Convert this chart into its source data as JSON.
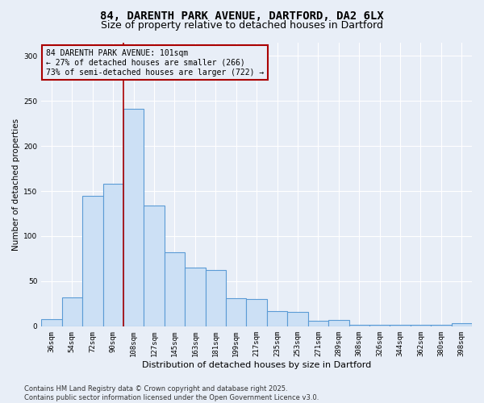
{
  "title_line1": "84, DARENTH PARK AVENUE, DARTFORD, DA2 6LX",
  "title_line2": "Size of property relative to detached houses in Dartford",
  "xlabel": "Distribution of detached houses by size in Dartford",
  "ylabel": "Number of detached properties",
  "categories": [
    "36sqm",
    "54sqm",
    "72sqm",
    "90sqm",
    "108sqm",
    "127sqm",
    "145sqm",
    "163sqm",
    "181sqm",
    "199sqm",
    "217sqm",
    "235sqm",
    "253sqm",
    "271sqm",
    "289sqm",
    "308sqm",
    "326sqm",
    "344sqm",
    "362sqm",
    "380sqm",
    "398sqm"
  ],
  "values": [
    8,
    32,
    145,
    158,
    241,
    134,
    82,
    65,
    62,
    31,
    30,
    17,
    16,
    6,
    7,
    2,
    2,
    2,
    2,
    2,
    3
  ],
  "bar_color": "#cce0f5",
  "bar_edge_color": "#5b9bd5",
  "vline_x_index": 3.5,
  "vline_color": "#aa0000",
  "annotation_text": "84 DARENTH PARK AVENUE: 101sqm\n← 27% of detached houses are smaller (266)\n73% of semi-detached houses are larger (722) →",
  "annotation_box_color": "#aa0000",
  "ylim": [
    0,
    315
  ],
  "yticks": [
    0,
    50,
    100,
    150,
    200,
    250,
    300
  ],
  "background_color": "#e8eef7",
  "grid_color": "#ffffff",
  "footer_text": "Contains HM Land Registry data © Crown copyright and database right 2025.\nContains public sector information licensed under the Open Government Licence v3.0.",
  "title_fontsize": 10,
  "subtitle_fontsize": 9,
  "annotation_fontsize": 7,
  "tick_fontsize": 6.5,
  "footer_fontsize": 6,
  "ylabel_fontsize": 7.5,
  "xlabel_fontsize": 8
}
